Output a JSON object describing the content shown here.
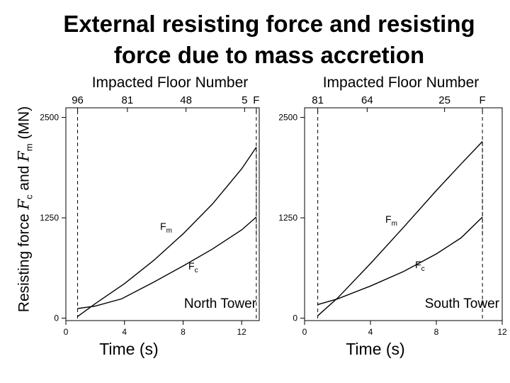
{
  "title_line1": "External resisting force and resisting",
  "title_line2": "force due to mass accretion",
  "y_axis_label": {
    "prefix": "Resisting force ",
    "sym1": "F",
    "sub1": "c",
    "mid": " and ",
    "sym2": "F",
    "sub2": "m",
    "suffix": " (MN)"
  },
  "chart_data": [
    {
      "type": "line",
      "panel": "North Tower",
      "top_axis_label": "Impacted Floor Number",
      "floor_ticks": [
        {
          "t": 0.8,
          "label": "96"
        },
        {
          "t": 4.2,
          "label": "81"
        },
        {
          "t": 8.2,
          "label": "48"
        },
        {
          "t": 12.2,
          "label": "5"
        },
        {
          "t": 13.0,
          "label": "F"
        }
      ],
      "marker_times": [
        0.8,
        13.0
      ],
      "xlabel": "Time (s)",
      "xlim": [
        0,
        13.2
      ],
      "ylim": [
        -30,
        2620
      ],
      "xticks": [
        0,
        4,
        8,
        12
      ],
      "yticks": [
        0,
        1250,
        2500
      ],
      "series": [
        {
          "name": "Fm",
          "label_main": "F",
          "label_sub": "m",
          "x": [
            0.8,
            2,
            4,
            6,
            8,
            10,
            12,
            13
          ],
          "y": [
            20,
            180,
            430,
            720,
            1050,
            1420,
            1860,
            2130
          ]
        },
        {
          "name": "Fc",
          "label_main": "F",
          "label_sub": "c",
          "x": [
            0.8,
            2,
            3.8,
            6,
            8,
            10,
            12,
            13
          ],
          "y": [
            120,
            150,
            240,
            450,
            650,
            860,
            1100,
            1260
          ]
        }
      ]
    },
    {
      "type": "line",
      "panel": "South Tower",
      "top_axis_label": "Impacted Floor Number",
      "floor_ticks": [
        {
          "t": 0.8,
          "label": "81"
        },
        {
          "t": 3.8,
          "label": "64"
        },
        {
          "t": 8.5,
          "label": "25"
        },
        {
          "t": 10.8,
          "label": "F"
        }
      ],
      "marker_times": [
        0.8,
        10.8
      ],
      "xlabel": "Time (s)",
      "xlim": [
        0,
        12
      ],
      "ylim": [
        -30,
        2620
      ],
      "xticks": [
        0,
        4,
        8,
        12
      ],
      "yticks": [
        0,
        1250,
        2500
      ],
      "series": [
        {
          "name": "Fm",
          "label_main": "F",
          "label_sub": "m",
          "x": [
            0.8,
            2,
            4,
            6,
            8,
            9.5,
            10.8
          ],
          "y": [
            30,
            250,
            680,
            1130,
            1590,
            1920,
            2200
          ]
        },
        {
          "name": "Fc",
          "label_main": "F",
          "label_sub": "c",
          "x": [
            0.8,
            2,
            4,
            6,
            8,
            9.5,
            10.8
          ],
          "y": [
            170,
            240,
            400,
            580,
            800,
            1000,
            1260
          ]
        }
      ]
    }
  ]
}
